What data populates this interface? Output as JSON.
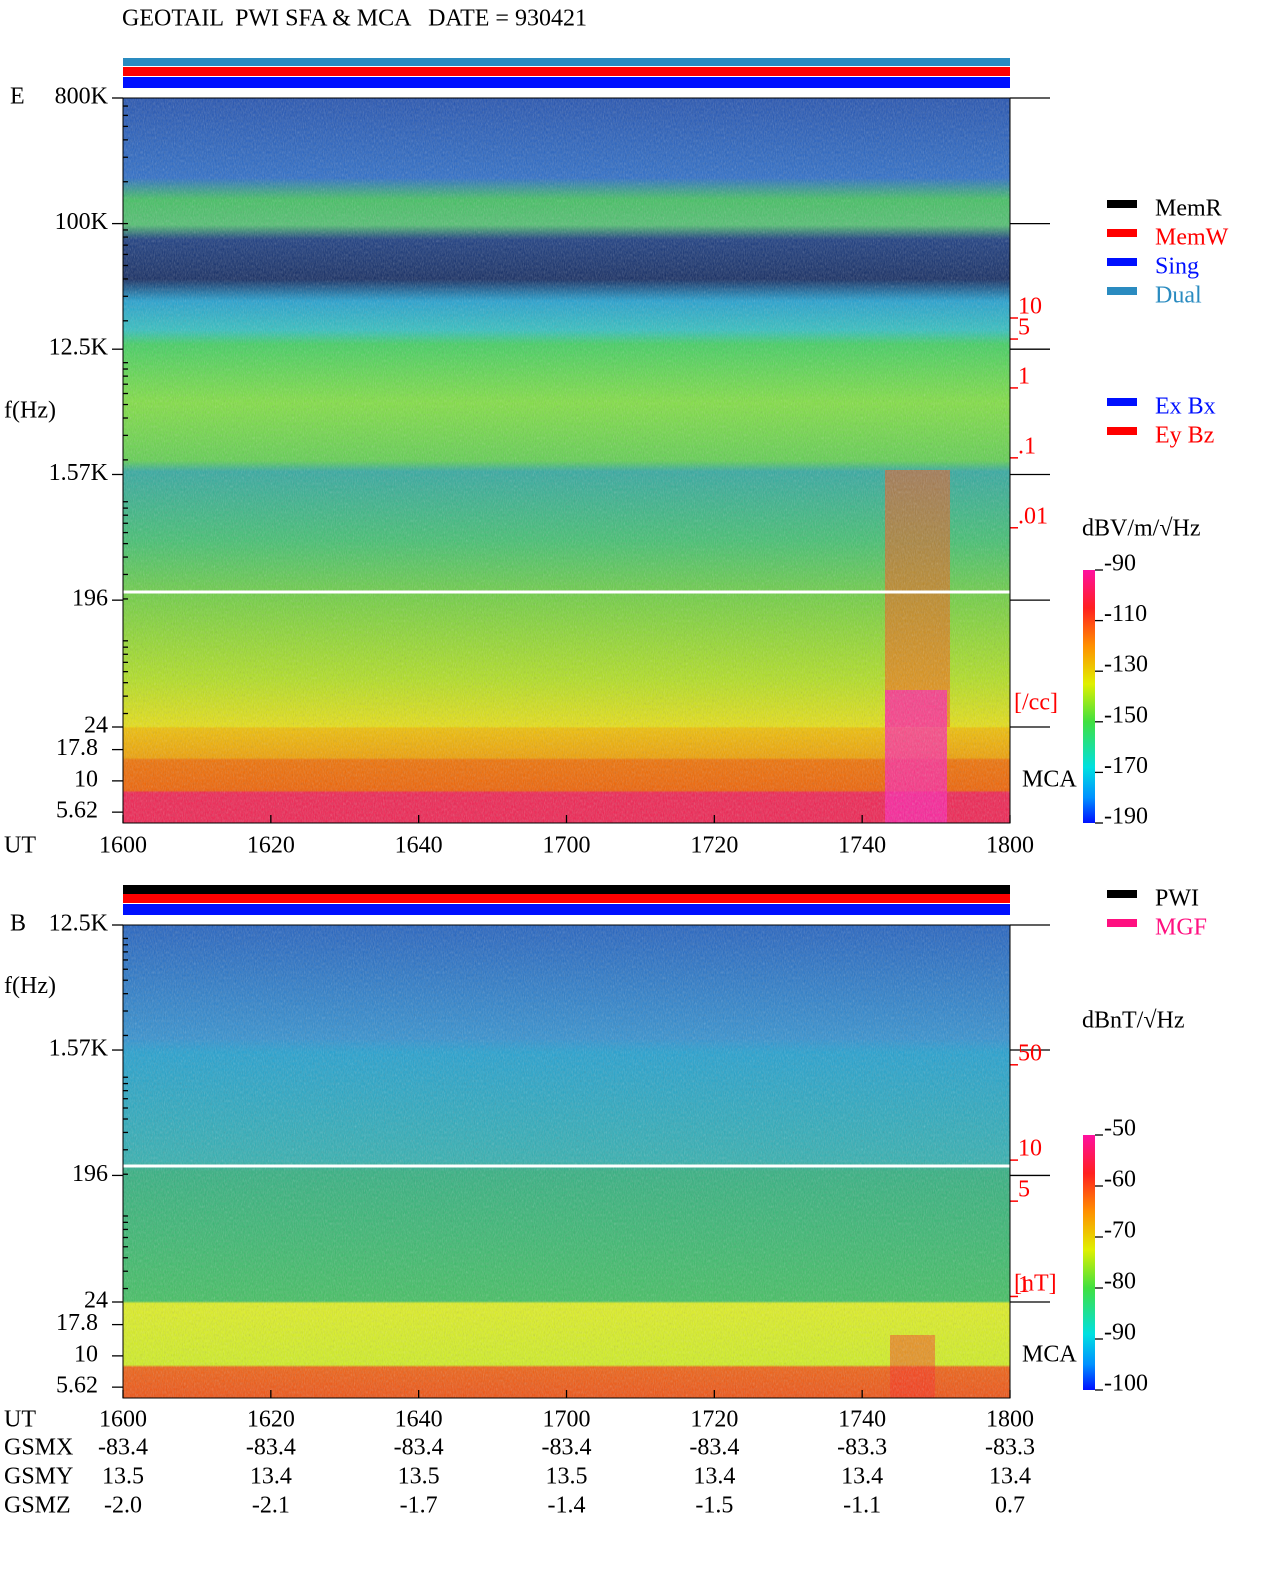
{
  "title": "GEOTAIL  PWI SFA & MCA   DATE = 930421",
  "x_label": "UT",
  "x_ticks": [
    "1600",
    "1620",
    "1640",
    "1700",
    "1720",
    "1740",
    "1800"
  ],
  "panels": [
    {
      "label": "E",
      "y_label": "f(Hz)",
      "freq_scale": "log",
      "freq_lim": [
        24,
        800000
      ],
      "freq_ticks": [
        {
          "value": 800000,
          "label": "800K"
        },
        {
          "value": 100000,
          "label": "100K"
        },
        {
          "value": 12500,
          "label": "12.5K"
        },
        {
          "value": 1570,
          "label": "1.57K"
        },
        196,
        24
      ],
      "mca_lim": [
        4.6,
        27
      ],
      "mca_ticks": [
        17.8,
        10,
        5.62
      ],
      "mca_label": "MCA",
      "y2_scale": "log",
      "y2lim": [
        6e-07,
        14000
      ],
      "y2ticks": [
        10,
        5,
        1,
        {
          "value": 0.1,
          "label": ".1"
        },
        {
          "value": 0.01,
          "label": ".01"
        }
      ],
      "y2_unit": "[/cc]",
      "y2_color": "#ff0000",
      "legends": [
        [
          {
            "name": "MemR",
            "color": "#000000"
          },
          {
            "name": "MemW",
            "color": "#ff0000"
          },
          {
            "name": "Sing",
            "color": "#0010ff"
          },
          {
            "name": "Dual",
            "color": "#2a8bc0"
          }
        ],
        [
          {
            "name": "Ex Bx",
            "color": "#0010ff"
          },
          {
            "name": "Ey Bz",
            "color": "#ff0000"
          }
        ]
      ],
      "colorbar_unit": "dBV/m/√Hz",
      "colorbar_lim": [
        -190,
        -90
      ],
      "colorbar_ticks": [
        -90,
        -110,
        -130,
        -150,
        -170,
        -190
      ]
    },
    {
      "label": "B",
      "y_label": "f(Hz)",
      "freq_scale": "log",
      "freq_lim": [
        24,
        12500
      ],
      "freq_ticks": [
        {
          "value": 12500,
          "label": "12.5K"
        },
        {
          "value": 1570,
          "label": "1.57K"
        },
        196,
        24
      ],
      "mca_lim": [
        4.6,
        27
      ],
      "mca_ticks": [
        17.8,
        10,
        5.62
      ],
      "mca_label": "MCA",
      "y2_scale": "log",
      "y2lim": [
        0.18,
        530
      ],
      "y2ticks": [
        50,
        10,
        5,
        1
      ],
      "y2_unit": "[nT]",
      "y2_color": "#ff0000",
      "legends": [
        [
          {
            "name": "PWI",
            "color": "#000000"
          },
          {
            "name": "MGF",
            "color": "#ff1080"
          }
        ]
      ],
      "colorbar_unit": "dBnT/√Hz",
      "colorbar_lim": [
        -100,
        -50
      ],
      "colorbar_ticks": [
        -50,
        -60,
        -70,
        -80,
        -90,
        -100
      ]
    }
  ],
  "orbit": {
    "rows": [
      {
        "name": "GSMX",
        "values": [
          -83.4,
          -83.4,
          -83.4,
          -83.4,
          -83.4,
          -83.3,
          -83.3
        ],
        "value_labels": [
          "-83.4",
          "-83.4",
          "-83.4",
          "-83.4",
          "-83.4",
          "-83.3",
          "-83.3"
        ]
      },
      {
        "name": "GSMY",
        "values": [
          13.5,
          13.4,
          13.5,
          13.5,
          13.4,
          13.4,
          13.4
        ],
        "value_labels": [
          "13.5",
          "13.4",
          "13.5",
          "13.5",
          "13.4",
          "13.4",
          "13.4"
        ]
      },
      {
        "name": "GSMZ",
        "values": [
          -2.0,
          -2.1,
          -1.7,
          -1.4,
          -1.5,
          -1.1,
          0.7
        ],
        "value_labels": [
          "-2.0",
          "-2.1",
          "-1.7",
          "-1.4",
          "-1.5",
          "-1.1",
          "0.7"
        ]
      }
    ]
  }
}
